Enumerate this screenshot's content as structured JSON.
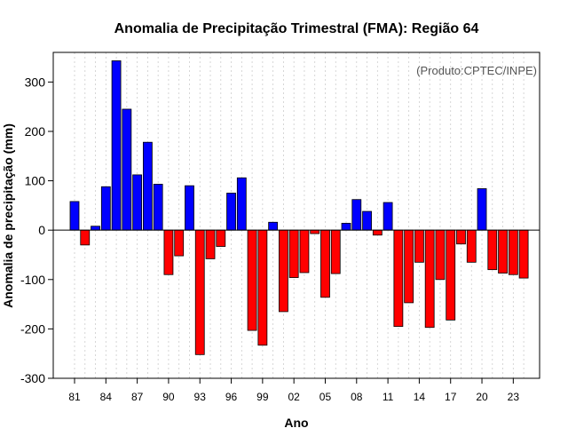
{
  "chart_data": {
    "type": "bar",
    "title": "Anomalia de Precipitação Trimestral (FMA): Região 64",
    "xlabel": "Ano",
    "ylabel": "Anomalia de precipitação (mm)",
    "annotation": "(Produto:CPTEC/INPE)",
    "ylim": [
      -300,
      360
    ],
    "yticks": [
      -300,
      -200,
      -100,
      0,
      100,
      200,
      300
    ],
    "years": [
      1981,
      1982,
      1983,
      1984,
      1985,
      1986,
      1987,
      1988,
      1989,
      1990,
      1991,
      1992,
      1993,
      1994,
      1995,
      1996,
      1997,
      1998,
      1999,
      2000,
      2001,
      2002,
      2003,
      2004,
      2005,
      2006,
      2007,
      2008,
      2009,
      2010,
      2011,
      2012,
      2013,
      2014,
      2015,
      2016,
      2017,
      2018,
      2019,
      2020,
      2021,
      2022,
      2023,
      2024
    ],
    "values": [
      58,
      -30,
      8,
      88,
      343,
      245,
      112,
      178,
      93,
      -90,
      -52,
      90,
      -252,
      -58,
      -33,
      75,
      106,
      -203,
      -233,
      16,
      -165,
      -96,
      -86,
      -7,
      -136,
      -88,
      14,
      62,
      38,
      -10,
      56,
      -195,
      -147,
      -65,
      -197,
      -100,
      -182,
      -28,
      -65,
      84,
      -80,
      -87,
      -90,
      -97
    ],
    "xtick_labels": [
      "81",
      "84",
      "87",
      "90",
      "93",
      "96",
      "99",
      "02",
      "05",
      "08",
      "11",
      "14",
      "17",
      "20",
      "23"
    ],
    "xtick_years": [
      1981,
      1984,
      1987,
      1990,
      1993,
      1996,
      1999,
      2002,
      2005,
      2008,
      2011,
      2014,
      2017,
      2020,
      2023
    ],
    "colors": {
      "positive": "#0000ff",
      "negative": "#ff0000",
      "grid": "#cccccc",
      "frame": "#000000"
    }
  }
}
